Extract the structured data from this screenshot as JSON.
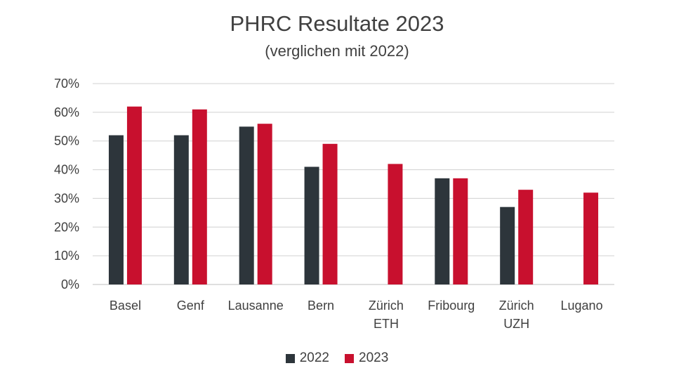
{
  "chart_data": {
    "type": "bar",
    "title": "PHRC Resultate 2023",
    "subtitle": "(verglichen mit 2022)",
    "categories": [
      [
        "Basel"
      ],
      [
        "Genf"
      ],
      [
        "Lausanne"
      ],
      [
        "Bern"
      ],
      [
        "Zürich",
        "ETH"
      ],
      [
        "Fribourg"
      ],
      [
        "Zürich",
        "UZH"
      ],
      [
        "Lugano"
      ]
    ],
    "series": [
      {
        "name": "2022",
        "color": "#2d353b",
        "values": [
          52,
          52,
          55,
          41,
          null,
          37,
          27,
          null
        ]
      },
      {
        "name": "2023",
        "color": "#c8102e",
        "values": [
          62,
          61,
          56,
          49,
          42,
          37,
          33,
          32
        ]
      }
    ],
    "ylim": [
      0,
      70
    ],
    "yticks": [
      "0%",
      "10%",
      "20%",
      "30%",
      "40%",
      "50%",
      "60%",
      "70%"
    ],
    "grid": true,
    "legend_position": "bottom"
  }
}
